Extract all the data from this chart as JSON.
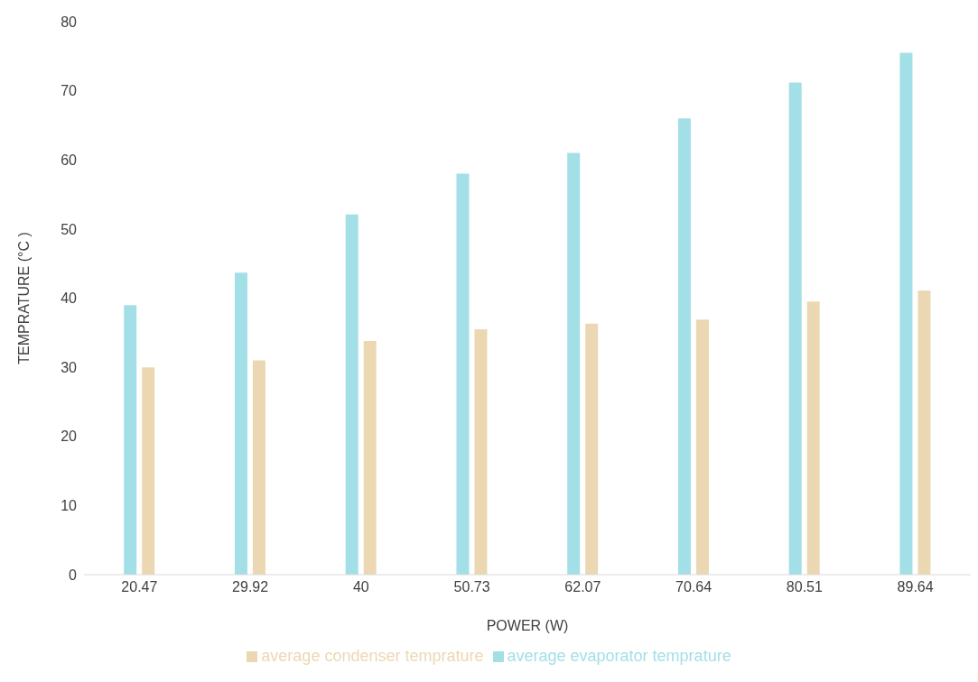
{
  "chart_data": {
    "type": "bar",
    "xlabel": "POWER (W)",
    "ylabel": "TEMPRATURE (°C )",
    "categories": [
      "20.47",
      "29.92",
      "40",
      "50.73",
      "62.07",
      "70.64",
      "80.51",
      "89.64"
    ],
    "series": [
      {
        "name": "average evaporator temprature",
        "color": "#a3dfe6",
        "values": [
          39,
          43.7,
          52.1,
          58,
          61,
          66,
          71.2,
          75.5
        ]
      },
      {
        "name": "average condenser temprature",
        "color": "#ebd8b2",
        "values": [
          30,
          31,
          33.8,
          35.5,
          36.3,
          36.9,
          39.5,
          41.1
        ]
      }
    ],
    "ylim": [
      0,
      80
    ],
    "yticks": [
      0,
      10,
      20,
      30,
      40,
      50,
      60,
      70,
      80
    ],
    "grid": false,
    "legend": "bottom"
  }
}
